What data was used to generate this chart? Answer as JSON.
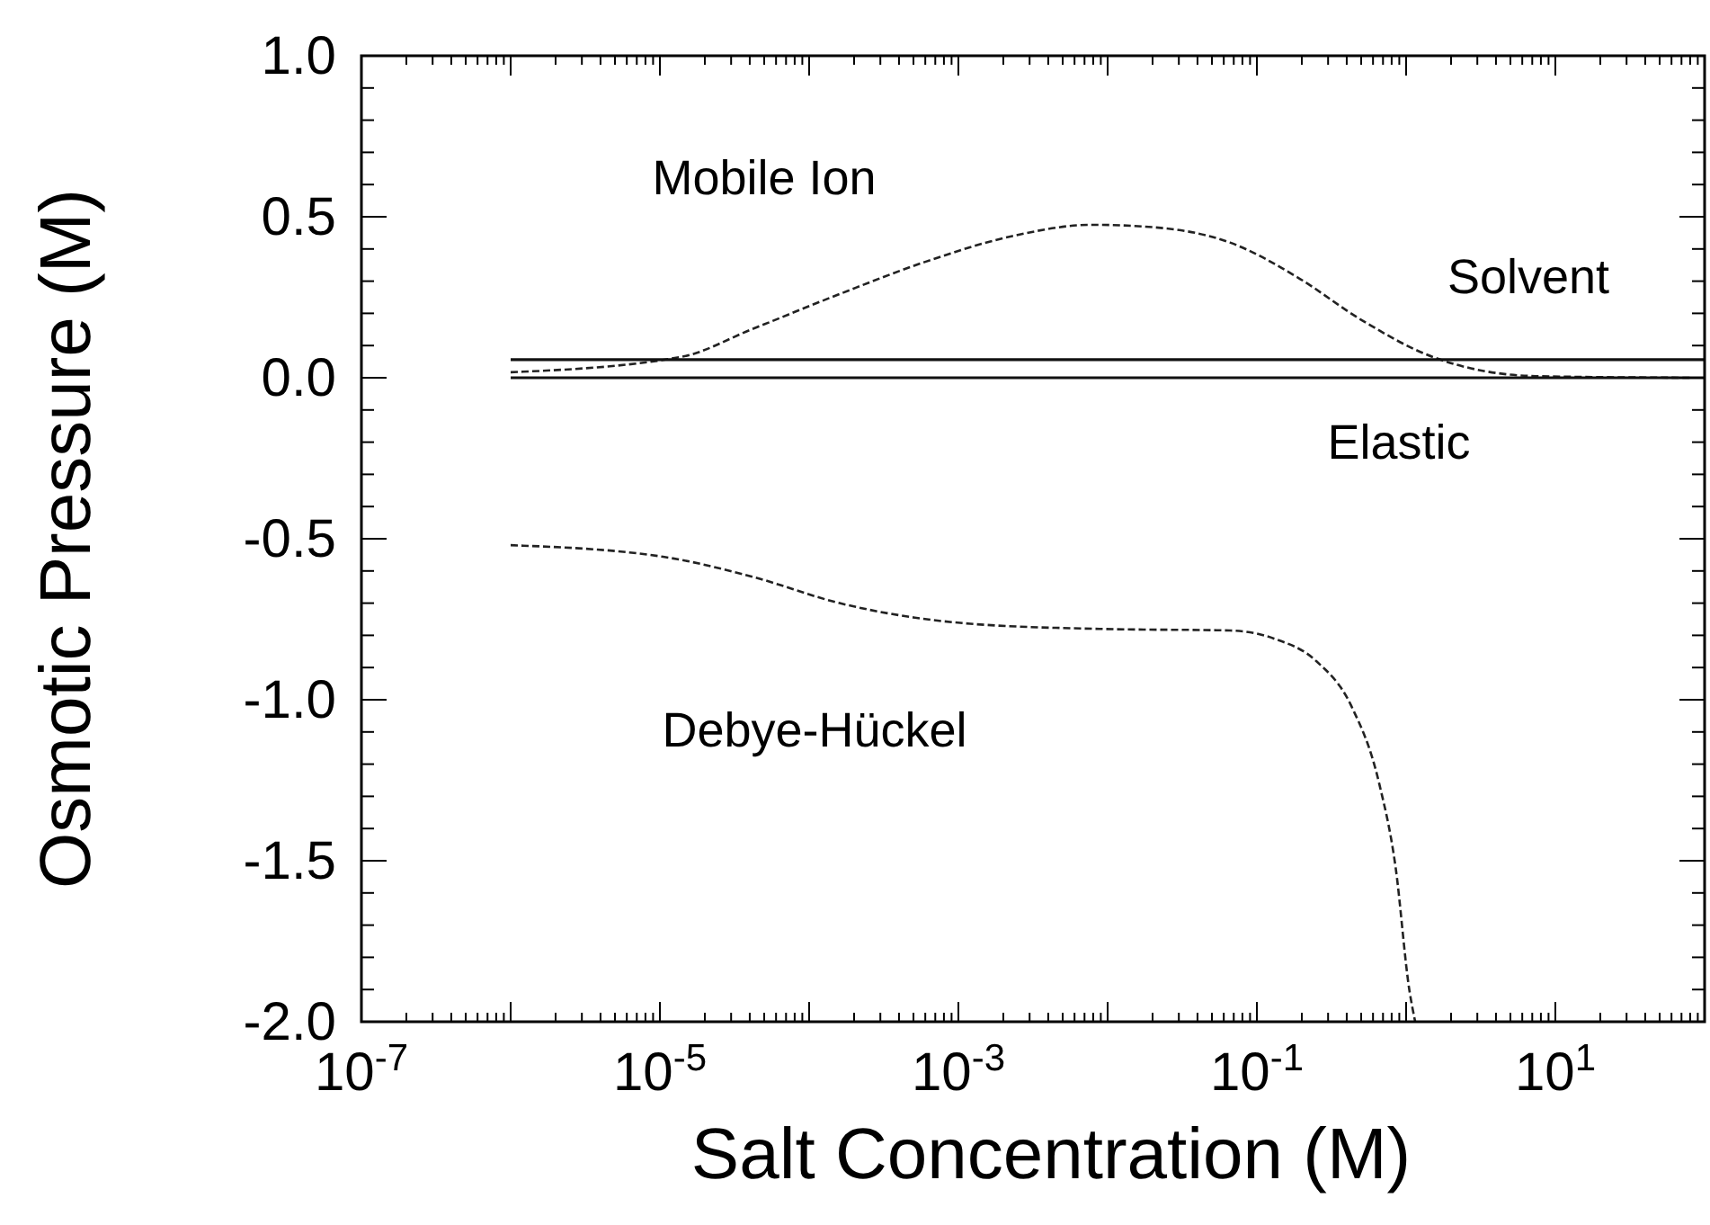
{
  "chart_data": {
    "type": "line",
    "xlabel": "Salt Concentration (M)",
    "ylabel": "Osmotic Pressure (M)",
    "log": "x",
    "xlim": [
      1e-07,
      100
    ],
    "ylim": [
      -2,
      1
    ],
    "xticks": [
      {
        "value": 1e-07,
        "label": "10$^{-7}$"
      },
      {
        "value": 1e-06,
        "label": null
      },
      {
        "value": 1e-05,
        "label": "10$^{-5}$"
      },
      {
        "value": 0.0001,
        "label": null
      },
      {
        "value": 0.001,
        "label": "10$^{-3}$"
      },
      {
        "value": 0.01,
        "label": null
      },
      {
        "value": 0.1,
        "label": "10$^{-1}$"
      },
      {
        "value": 1,
        "label": null
      },
      {
        "value": 10,
        "label": "10$^{1}$"
      },
      {
        "value": 100,
        "label": null
      }
    ],
    "yticks": [
      {
        "value": 1,
        "label": "1.0"
      },
      {
        "value": 0.5,
        "label": "0.5"
      },
      {
        "value": 0,
        "label": "0.0"
      },
      {
        "value": -0.5,
        "label": "-0.5"
      },
      {
        "value": -1,
        "label": "-1.0"
      },
      {
        "value": -1.5,
        "label": "-1.5"
      },
      {
        "value": -2,
        "label": "-2.0"
      }
    ],
    "grid": false,
    "series": [
      {
        "name": "Mobile Ion",
        "color": "#222222",
        "line_style": "dashed",
        "x": [
          1e-06,
          1.4e-05,
          4.1e-05,
          0.00016,
          0.0006,
          0.0023,
          0.0078,
          0.017,
          0.066,
          0.19,
          0.5,
          1.5,
          7.4,
          80
        ],
        "values": [
          0.017,
          0.065,
          0.15,
          0.26,
          0.36,
          0.44,
          0.475,
          0.47,
          0.42,
          0.31,
          0.18,
          0.065,
          0.005,
          0.0
        ]
      },
      {
        "name": "Solvent",
        "color": "#111111",
        "line_style": "solid",
        "x": [
          1e-06,
          100
        ],
        "values": [
          0.056,
          0.056
        ]
      },
      {
        "name": "Elastic",
        "color": "#111111",
        "line_style": "solid",
        "x": [
          1e-06,
          100
        ],
        "values": [
          0.0,
          0.0
        ]
      },
      {
        "name": "Debye-Hückel",
        "color": "#222222",
        "line_style": "dashed",
        "x": [
          1e-06,
          1.05e-05,
          4.1e-05,
          0.00016,
          0.0012,
          0.0089,
          0.066,
          0.13,
          0.25,
          0.43,
          0.66,
          0.85,
          1.05,
          1.15
        ],
        "values": [
          -0.52,
          -0.556,
          -0.617,
          -0.7,
          -0.764,
          -0.78,
          -0.785,
          -0.81,
          -0.88,
          -1.02,
          -1.26,
          -1.52,
          -1.9,
          -2.0
        ]
      }
    ]
  }
}
